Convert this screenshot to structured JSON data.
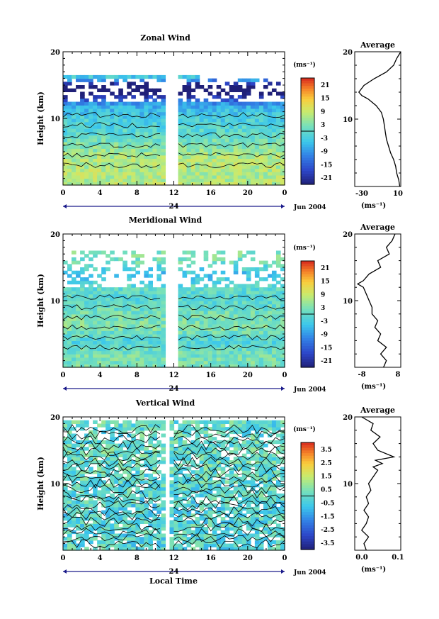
{
  "figure": {
    "xaxis_label": "Local Time",
    "date_label": "Jun 2004",
    "day_label": "24",
    "time_ticks": [
      "0",
      "4",
      "8",
      "12",
      "16",
      "20",
      "0"
    ]
  },
  "chart_data": [
    {
      "type": "heatmap",
      "title": "Zonal Wind",
      "ylabel": "Height (km)",
      "xlabel": "Local Time",
      "ylim": [
        0,
        20
      ],
      "xlim": [
        0,
        24
      ],
      "y_ticks": [
        "20",
        "10"
      ],
      "gap_hours": [
        10.9,
        12.3
      ],
      "colorbar": {
        "unit_label": "(ms⁻¹)",
        "tick_labels": [
          "21",
          "15",
          "9",
          "3",
          "-3",
          "-9",
          "-15",
          "-21"
        ],
        "range": [
          -24,
          24
        ]
      },
      "profile_means": {
        "heights_km": [
          2,
          4,
          6,
          8,
          10,
          12,
          14,
          15,
          16,
          18,
          20
        ],
        "values": [
          7,
          7,
          3,
          -1,
          -3,
          -7,
          -28,
          -27,
          -5,
          5,
          10
        ]
      },
      "average_panel": {
        "title": "Average",
        "y_ticks": [
          "20",
          "10"
        ],
        "x_ticks": [
          "-30",
          "10"
        ],
        "xlabel": "(ms⁻¹)",
        "xlim": [
          -35,
          10
        ],
        "heights_km": [
          0,
          1,
          2,
          3,
          4,
          5,
          6,
          7,
          8,
          9,
          10,
          11,
          12,
          13,
          13.5,
          14,
          15,
          16,
          17,
          18,
          19,
          20
        ],
        "values": [
          9,
          8,
          6,
          5,
          3,
          0,
          -2,
          -4,
          -5,
          -6,
          -7,
          -9,
          -14,
          -22,
          -28,
          -31,
          -26,
          -16,
          -4,
          3,
          6,
          10
        ]
      }
    },
    {
      "type": "heatmap",
      "title": "Meridional Wind",
      "ylabel": "Height (km)",
      "xlabel": "Local Time",
      "ylim": [
        0,
        20
      ],
      "xlim": [
        0,
        24
      ],
      "y_ticks": [
        "20",
        "10"
      ],
      "gap_hours": [
        10.9,
        12.3
      ],
      "colorbar": {
        "unit_label": "(ms⁻¹)",
        "tick_labels": [
          "21",
          "15",
          "9",
          "3",
          "-3",
          "-9",
          "-15",
          "-21"
        ],
        "range": [
          -24,
          24
        ]
      },
      "profile_means": {
        "heights_km": [
          2,
          4,
          6,
          8,
          10,
          12,
          14,
          16,
          18,
          20
        ],
        "values": [
          2,
          -2,
          3,
          2,
          -1,
          0,
          -5,
          2,
          3,
          1
        ]
      },
      "average_panel": {
        "title": "Average",
        "y_ticks": [
          "20",
          "10"
        ],
        "x_ticks": [
          "-8",
          "8"
        ],
        "xlabel": "(ms⁻¹)",
        "xlim": [
          -8,
          8
        ],
        "heights_km": [
          0,
          1,
          2,
          3,
          4,
          5,
          6,
          7,
          8,
          9,
          10,
          11,
          12,
          12.5,
          13,
          14,
          15,
          16,
          17,
          18,
          19,
          20
        ],
        "values": [
          2,
          3,
          1,
          3,
          0,
          1,
          -1,
          0,
          -2,
          -2,
          -3,
          -4,
          -5,
          -7,
          -5,
          -3,
          1,
          0,
          4,
          3,
          5,
          6
        ]
      }
    },
    {
      "type": "heatmap",
      "title": "Vertical Wind",
      "ylabel": "Height (km)",
      "xlabel": "Local Time",
      "ylim": [
        0,
        20
      ],
      "xlim": [
        0,
        24
      ],
      "y_ticks": [
        "20",
        "10"
      ],
      "gap_hours": [
        10.9,
        11.7
      ],
      "colorbar": {
        "unit_label": "(ms⁻¹)",
        "tick_labels": [
          "3.5",
          "2.5",
          "1.5",
          "0.5",
          "-0.5",
          "-1.5",
          "-2.5",
          "-3.5"
        ],
        "range": [
          -4,
          4
        ]
      },
      "profile_means": {
        "heights_km": [
          2,
          6,
          10,
          14,
          18,
          20
        ],
        "values": [
          -0.2,
          -0.3,
          -0.1,
          0.1,
          -0.1,
          0.0
        ]
      },
      "average_panel": {
        "title": "Average",
        "y_ticks": [
          "20",
          "10"
        ],
        "x_ticks": [
          "0.0",
          "0.1"
        ],
        "xlabel": "(ms⁻¹)",
        "xlim": [
          -0.05,
          0.15
        ],
        "heights_km": [
          0,
          1,
          2,
          3,
          4,
          5,
          6,
          7,
          8,
          9,
          10,
          11,
          12,
          12.5,
          13,
          13.5,
          14,
          15,
          16,
          17,
          18,
          19,
          20
        ],
        "values": [
          0.0,
          -0.01,
          0.01,
          -0.02,
          0.0,
          0.01,
          -0.01,
          0.01,
          0.0,
          0.02,
          0.01,
          0.03,
          0.05,
          0.03,
          0.07,
          0.04,
          0.12,
          0.05,
          0.03,
          0.06,
          0.02,
          0.03,
          -0.02
        ]
      }
    }
  ]
}
